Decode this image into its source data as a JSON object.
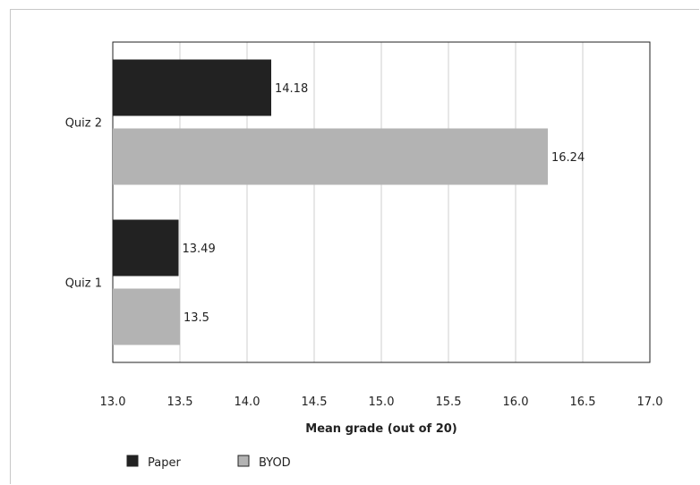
{
  "chart_data": {
    "type": "bar",
    "orientation": "horizontal",
    "categories": [
      "Quiz 1",
      "Quiz 2"
    ],
    "series": [
      {
        "name": "Paper",
        "values": [
          13.49,
          14.18
        ],
        "color": "#222222"
      },
      {
        "name": "BYOD",
        "values": [
          13.5,
          16.24
        ],
        "color": "#b3b3b3"
      }
    ],
    "data_labels": [
      [
        "13.49",
        "14.18"
      ],
      [
        "13.5",
        "16.24"
      ]
    ],
    "xlabel": "Mean grade (out of 20)",
    "xlim": [
      13.0,
      17.0
    ],
    "xticks": [
      "13.0",
      "13.5",
      "14.0",
      "14.5",
      "15.0",
      "15.5",
      "16.0",
      "16.5",
      "17.0"
    ],
    "grid": "vertical",
    "legend_position": "bottom-left"
  }
}
